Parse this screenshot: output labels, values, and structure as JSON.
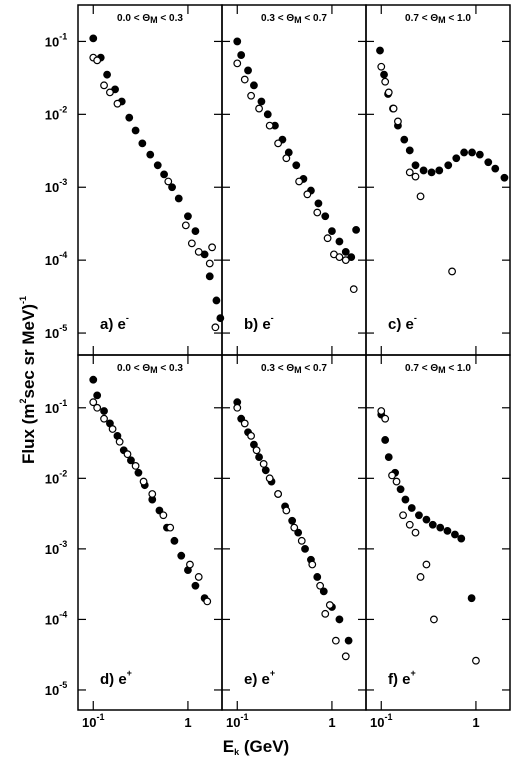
{
  "figure": {
    "ylabel_parts": [
      "Flux (m",
      "2",
      "sec sr MeV)",
      "-1"
    ],
    "xlabel_parts": [
      "E",
      "k",
      " (GeV)"
    ]
  },
  "chart_data": [
    {
      "type": "scatter",
      "title_parts": [
        "0.0 < Θ",
        "M",
        " < 0.3"
      ],
      "label": "a) e",
      "label_sup": "-",
      "xlim": [
        0.069,
        2.29
      ],
      "ylim": [
        5e-06,
        0.316
      ],
      "log_x": true,
      "log_y": true,
      "xticks": [
        0.1,
        1
      ],
      "yticks": [
        {
          "value": 0.1,
          "label": "10",
          "exponent": "-1"
        },
        {
          "value": 0.01,
          "label": "10",
          "exponent": "-2"
        },
        {
          "value": 0.001,
          "label": "10",
          "exponent": "-3"
        },
        {
          "value": 0.0001,
          "label": "10",
          "exponent": "-4"
        },
        {
          "value": 1e-05,
          "label": "10",
          "exponent": "-5"
        }
      ],
      "series": [
        {
          "color": "#000",
          "fill": "#000",
          "x": [
            0.1,
            0.12,
            0.14,
            0.17,
            0.2,
            0.24,
            0.28,
            0.33,
            0.4,
            0.48,
            0.56,
            0.68,
            0.8,
            1.0,
            1.2,
            1.5,
            1.7,
            2.0,
            2.2
          ],
          "values": [
            0.11,
            0.06,
            0.035,
            0.022,
            0.015,
            0.009,
            0.006,
            0.004,
            0.0028,
            0.002,
            0.0015,
            0.001,
            0.0007,
            0.0004,
            0.00025,
            0.00012,
            6e-05,
            2.8e-05,
            1.6e-05
          ]
        },
        {
          "color": "#000",
          "fill": "#fff",
          "x": [
            0.1,
            0.11,
            0.13,
            0.15,
            0.18,
            0.62,
            0.95,
            1.1,
            1.3,
            1.7,
            1.8,
            1.95
          ],
          "values": [
            0.06,
            0.055,
            0.025,
            0.02,
            0.014,
            0.0012,
            0.0003,
            0.00017,
            0.00013,
            9e-05,
            0.00015,
            1.2e-05
          ]
        }
      ]
    },
    {
      "type": "scatter",
      "title_parts": [
        "0.3 < Θ",
        "M",
        " < 0.7"
      ],
      "label": "b) e",
      "label_sup": "-",
      "xlim": [
        0.069,
        2.29
      ],
      "ylim": [
        5e-06,
        0.316
      ],
      "log_x": true,
      "log_y": true,
      "xticks": [
        0.1,
        1
      ],
      "yticks": [
        0.1,
        0.01,
        0.001,
        0.0001,
        1e-05
      ],
      "series": [
        {
          "color": "#000",
          "fill": "#000",
          "x": [
            0.1,
            0.11,
            0.13,
            0.15,
            0.18,
            0.21,
            0.25,
            0.3,
            0.35,
            0.42,
            0.5,
            0.6,
            0.72,
            0.85,
            1.0,
            1.2,
            1.4,
            1.6,
            1.8
          ],
          "values": [
            0.1,
            0.065,
            0.04,
            0.025,
            0.015,
            0.01,
            0.007,
            0.0045,
            0.003,
            0.002,
            0.0013,
            0.0009,
            0.0006,
            0.0004,
            0.00025,
            0.00018,
            0.00013,
            0.00011,
            0.00026
          ]
        },
        {
          "color": "#000",
          "fill": "#fff",
          "x": [
            0.1,
            0.12,
            0.14,
            0.17,
            0.22,
            0.27,
            0.33,
            0.45,
            0.55,
            0.7,
            0.9,
            1.05,
            1.2,
            1.4,
            1.7
          ],
          "values": [
            0.05,
            0.03,
            0.018,
            0.012,
            0.007,
            0.004,
            0.0025,
            0.0012,
            0.0008,
            0.00045,
            0.0002,
            0.00012,
            0.00011,
            0.0001,
            4e-05
          ]
        }
      ]
    },
    {
      "type": "scatter",
      "title_parts": [
        "0.7 < Θ",
        "M",
        " < 1.0"
      ],
      "label": "c) e",
      "label_sup": "-",
      "xlim": [
        0.069,
        2.29
      ],
      "ylim": [
        5e-06,
        0.316
      ],
      "log_x": true,
      "log_y": true,
      "xticks": [
        0.1,
        1
      ],
      "yticks": [
        0.1,
        0.01,
        0.001,
        0.0001,
        1e-05
      ],
      "series": [
        {
          "color": "#000",
          "fill": "#000",
          "x": [
            0.097,
            0.107,
            0.118,
            0.133,
            0.15,
            0.175,
            0.2,
            0.23,
            0.28,
            0.34,
            0.41,
            0.51,
            0.62,
            0.75,
            0.91,
            1.1,
            1.35,
            1.6,
            2.0
          ],
          "values": [
            0.075,
            0.035,
            0.019,
            0.012,
            0.007,
            0.0045,
            0.0032,
            0.002,
            0.0017,
            0.0016,
            0.0017,
            0.002,
            0.0025,
            0.003,
            0.003,
            0.0028,
            0.0022,
            0.0018,
            0.00135
          ]
        },
        {
          "color": "#000",
          "fill": "#fff",
          "x": [
            0.1,
            0.11,
            0.12,
            0.135,
            0.15,
            0.2,
            0.23,
            0.26,
            0.56
          ],
          "values": [
            0.045,
            0.028,
            0.02,
            0.012,
            0.008,
            0.0016,
            0.0014,
            0.00075,
            7e-05
          ]
        }
      ]
    },
    {
      "type": "scatter",
      "title_parts": [
        "0.0 < Θ",
        "M",
        " < 0.3"
      ],
      "label": "d) e",
      "label_sup": "+",
      "xlim": [
        0.069,
        2.29
      ],
      "ylim": [
        5.2e-06,
        0.56
      ],
      "log_x": true,
      "log_y": true,
      "xticks": [
        {
          "value": 0.1,
          "label": "10",
          "exponent": "-1"
        },
        {
          "value": 1,
          "label": "1",
          "exponent": ""
        }
      ],
      "yticks": [
        {
          "value": 0.1,
          "label": "10",
          "exponent": "-1"
        },
        {
          "value": 0.01,
          "label": "10",
          "exponent": "-2"
        },
        {
          "value": 0.001,
          "label": "10",
          "exponent": "-3"
        },
        {
          "value": 0.0001,
          "label": "10",
          "exponent": "-4"
        },
        {
          "value": 1e-05,
          "label": "10",
          "exponent": "-5"
        }
      ],
      "series": [
        {
          "color": "#000",
          "fill": "#000",
          "x": [
            0.1,
            0.11,
            0.13,
            0.15,
            0.18,
            0.21,
            0.25,
            0.3,
            0.35,
            0.42,
            0.5,
            0.6,
            0.72,
            0.85,
            1.0,
            1.2,
            1.5
          ],
          "values": [
            0.25,
            0.15,
            0.09,
            0.06,
            0.04,
            0.025,
            0.018,
            0.012,
            0.008,
            0.005,
            0.0035,
            0.002,
            0.0013,
            0.0008,
            0.0005,
            0.0003,
            0.0002
          ]
        },
        {
          "color": "#000",
          "fill": "#fff",
          "x": [
            0.1,
            0.11,
            0.13,
            0.16,
            0.19,
            0.23,
            0.28,
            0.34,
            0.42,
            0.55,
            0.65,
            1.05,
            1.3,
            1.6
          ],
          "values": [
            0.12,
            0.1,
            0.07,
            0.05,
            0.033,
            0.022,
            0.015,
            0.009,
            0.006,
            0.003,
            0.002,
            0.0006,
            0.0004,
            0.00018
          ]
        }
      ]
    },
    {
      "type": "scatter",
      "title_parts": [
        "0.3 < Θ",
        "M",
        " < 0.7"
      ],
      "label": "e) e",
      "label_sup": "+",
      "xlim": [
        0.069,
        2.29
      ],
      "ylim": [
        5.2e-06,
        0.56
      ],
      "log_x": true,
      "log_y": true,
      "xticks": [
        {
          "value": 0.1,
          "label": "10",
          "exponent": "-1"
        },
        {
          "value": 1,
          "label": "1",
          "exponent": ""
        }
      ],
      "yticks": [
        0.1,
        0.01,
        0.001,
        0.0001,
        1e-05
      ],
      "series": [
        {
          "color": "#000",
          "fill": "#000",
          "x": [
            0.1,
            0.11,
            0.13,
            0.15,
            0.17,
            0.2,
            0.23,
            0.27,
            0.32,
            0.38,
            0.44,
            0.52,
            0.6,
            0.7,
            0.82,
            1.0,
            1.2,
            1.5
          ],
          "values": [
            0.12,
            0.07,
            0.045,
            0.03,
            0.02,
            0.013,
            0.009,
            0.006,
            0.004,
            0.0025,
            0.0017,
            0.001,
            0.0007,
            0.0004,
            0.00025,
            0.00015,
            0.0001,
            5e-05
          ]
        },
        {
          "color": "#000",
          "fill": "#fff",
          "x": [
            0.1,
            0.12,
            0.14,
            0.16,
            0.19,
            0.22,
            0.27,
            0.33,
            0.4,
            0.48,
            0.62,
            0.75,
            0.85,
            0.95,
            1.1,
            1.4
          ],
          "values": [
            0.1,
            0.06,
            0.04,
            0.025,
            0.016,
            0.01,
            0.006,
            0.0035,
            0.002,
            0.0013,
            0.0006,
            0.0003,
            0.00012,
            0.00016,
            5e-05,
            3e-05
          ]
        }
      ]
    },
    {
      "type": "scatter",
      "title_parts": [
        "0.7 < Θ",
        "M",
        " < 1.0"
      ],
      "label": "f) e",
      "label_sup": "+",
      "xlim": [
        0.069,
        2.29
      ],
      "ylim": [
        5.2e-06,
        0.56
      ],
      "log_x": true,
      "log_y": true,
      "xticks": [
        {
          "value": 0.1,
          "label": "10",
          "exponent": "-1"
        },
        {
          "value": 1,
          "label": "1",
          "exponent": ""
        }
      ],
      "yticks": [
        0.1,
        0.01,
        0.001,
        0.0001,
        1e-05
      ],
      "series": [
        {
          "color": "#000",
          "fill": "#000",
          "x": [
            0.1,
            0.11,
            0.12,
            0.14,
            0.16,
            0.18,
            0.21,
            0.25,
            0.3,
            0.35,
            0.42,
            0.5,
            0.6,
            0.7,
            0.9
          ],
          "values": [
            0.08,
            0.035,
            0.02,
            0.012,
            0.007,
            0.005,
            0.0038,
            0.003,
            0.0026,
            0.0022,
            0.002,
            0.0018,
            0.0016,
            0.0014,
            0.0002
          ]
        },
        {
          "color": "#000",
          "fill": "#fff",
          "x": [
            0.1,
            0.11,
            0.13,
            0.145,
            0.17,
            0.2,
            0.23,
            0.26,
            0.3,
            0.36,
            1.0
          ],
          "values": [
            0.09,
            0.07,
            0.011,
            0.009,
            0.003,
            0.0022,
            0.0017,
            0.0004,
            0.0006,
            0.0001,
            2.6e-05
          ]
        }
      ]
    }
  ]
}
